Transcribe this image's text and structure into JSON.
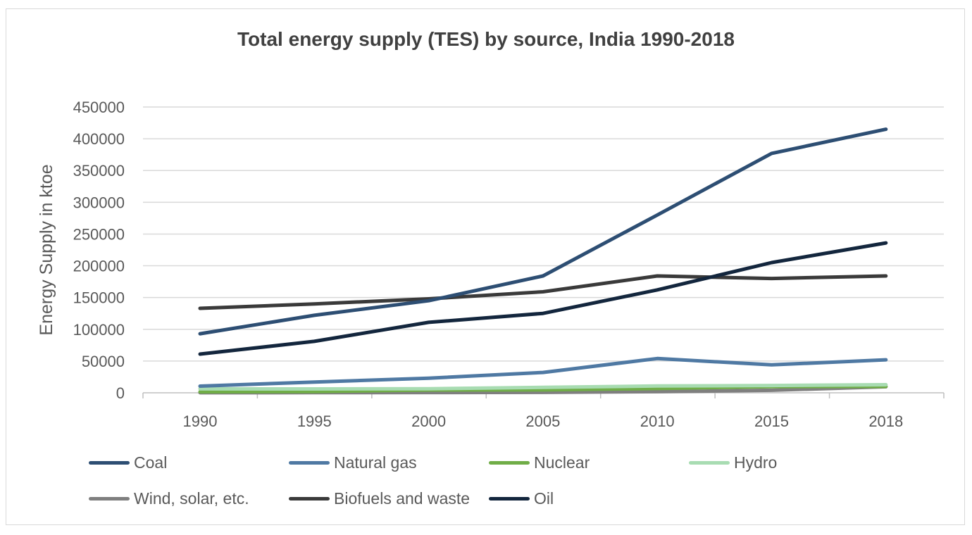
{
  "chart_data": {
    "type": "line",
    "title": "Total energy supply (TES) by source, India 1990-2018",
    "xlabel": "",
    "ylabel": "Energy Supply in ktoe",
    "ylim": [
      0,
      450000
    ],
    "yticks": [
      "0",
      "50000",
      "100000",
      "150000",
      "200000",
      "250000",
      "300000",
      "350000",
      "400000",
      "450000"
    ],
    "categories": [
      "1990",
      "1995",
      "2000",
      "2005",
      "2010",
      "2015",
      "2018"
    ],
    "grid": true,
    "legend_position": "bottom",
    "series": [
      {
        "name": "Coal",
        "color": "#2d4e73",
        "values": [
          93000,
          122000,
          145000,
          184000,
          280000,
          377000,
          415000
        ]
      },
      {
        "name": "Natural gas",
        "color": "#4f79a3",
        "values": [
          10500,
          17000,
          23000,
          32000,
          54000,
          44000,
          52000
        ]
      },
      {
        "name": "Nuclear",
        "color": "#70ad47",
        "values": [
          1600,
          2000,
          4400,
          4500,
          6800,
          9800,
          10000
        ]
      },
      {
        "name": "Hydro",
        "color": "#a8dcb2",
        "values": [
          6200,
          6100,
          6400,
          8500,
          10800,
          11500,
          12800
        ]
      },
      {
        "name": "Wind, solar, etc.",
        "color": "#7f7f7f",
        "values": [
          100,
          200,
          400,
          700,
          1800,
          4000,
          9500
        ]
      },
      {
        "name": "Biofuels and waste",
        "color": "#3a3a3a",
        "values": [
          133000,
          140000,
          148000,
          159000,
          184000,
          180000,
          184000
        ]
      },
      {
        "name": "Oil",
        "color": "#13263d",
        "values": [
          61000,
          81000,
          111000,
          125000,
          162000,
          205000,
          236000
        ]
      }
    ]
  }
}
